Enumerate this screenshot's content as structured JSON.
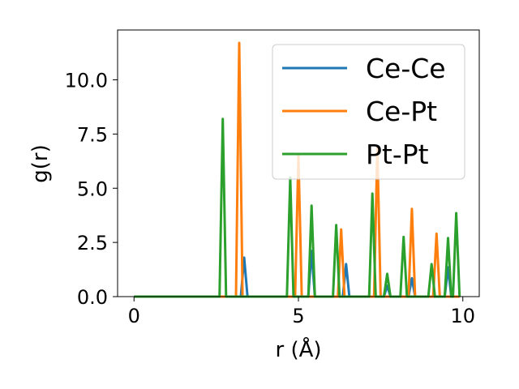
{
  "chart_data": {
    "type": "line",
    "xlabel": "r (Å)",
    "ylabel": "g(r)",
    "xlim": [
      -0.5,
      10.5
    ],
    "ylim": [
      0,
      12.3
    ],
    "x_ticks": [
      0,
      5,
      10
    ],
    "x_tick_labels": [
      "0",
      "5",
      "10"
    ],
    "y_ticks": [
      0,
      2.5,
      5,
      7.5,
      10
    ],
    "y_tick_labels": [
      "0.0",
      "2.5",
      "5.0",
      "7.5",
      "10.0"
    ],
    "grid": false,
    "legend_position": "upper-right",
    "x_range": [
      0,
      9.9
    ],
    "peak_half_width": 0.1,
    "series": [
      {
        "name": "Ce-Ce",
        "color": "#1f77b4",
        "peaks": [
          [
            3.35,
            1.8
          ],
          [
            5.4,
            2.1
          ],
          [
            6.45,
            1.5
          ],
          [
            7.7,
            0.5
          ],
          [
            8.45,
            0.85
          ],
          [
            9.55,
            1.35
          ]
        ]
      },
      {
        "name": "Ce-Pt",
        "color": "#ff7f0e",
        "peaks": [
          [
            3.2,
            11.7
          ],
          [
            5.0,
            6.5
          ],
          [
            6.3,
            3.1
          ],
          [
            7.4,
            6.9
          ],
          [
            8.45,
            4.05
          ],
          [
            9.2,
            2.9
          ]
        ]
      },
      {
        "name": "Pt-Pt",
        "color": "#2ca02c",
        "peaks": [
          [
            2.7,
            8.2
          ],
          [
            4.75,
            5.5
          ],
          [
            5.4,
            4.2
          ],
          [
            6.15,
            3.3
          ],
          [
            7.25,
            4.75
          ],
          [
            7.7,
            1.05
          ],
          [
            8.2,
            2.75
          ],
          [
            9.05,
            1.5
          ],
          [
            9.55,
            2.7
          ],
          [
            9.8,
            3.85
          ]
        ]
      }
    ]
  }
}
